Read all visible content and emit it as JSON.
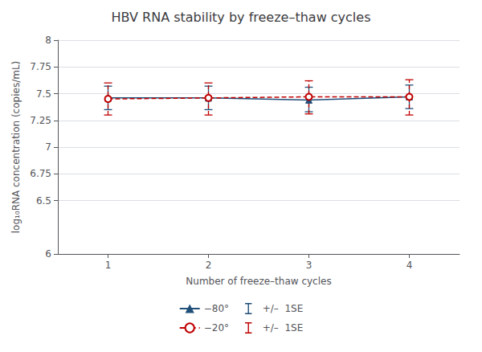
{
  "chart_data": {
    "type": "line",
    "title": "HBV RNA stability by freeze–thaw cycles",
    "xlabel": "Number of freeze–thaw cycles",
    "ylabel": "log₁₀RNA concentration (copies/mL)",
    "x": [
      1,
      2,
      3,
      4
    ],
    "series": [
      {
        "name": "−80°",
        "color": "#1f4e79",
        "marker": "triangle",
        "line_style": "solid",
        "values": [
          7.46,
          7.46,
          7.44,
          7.47
        ],
        "upper": [
          7.57,
          7.57,
          7.56,
          7.58
        ],
        "lower": [
          7.35,
          7.35,
          7.33,
          7.36
        ]
      },
      {
        "name": "−20°",
        "color": "#c00000",
        "marker": "open_circle",
        "line_style": "dashed",
        "values": [
          7.45,
          7.46,
          7.47,
          7.47
        ],
        "upper": [
          7.6,
          7.6,
          7.62,
          7.63
        ],
        "lower": [
          7.3,
          7.3,
          7.31,
          7.3
        ]
      }
    ],
    "error_bar_label": "+/–  1SE",
    "xlim": [
      0.5,
      4.5
    ],
    "xticks": [
      1,
      2,
      3,
      4
    ],
    "ylim": [
      6.0,
      8.0
    ],
    "yticks": [
      6.0,
      6.5,
      6.75,
      7.0,
      7.25,
      7.5,
      7.75,
      8.0
    ],
    "grid": true,
    "legend": "bottom"
  }
}
